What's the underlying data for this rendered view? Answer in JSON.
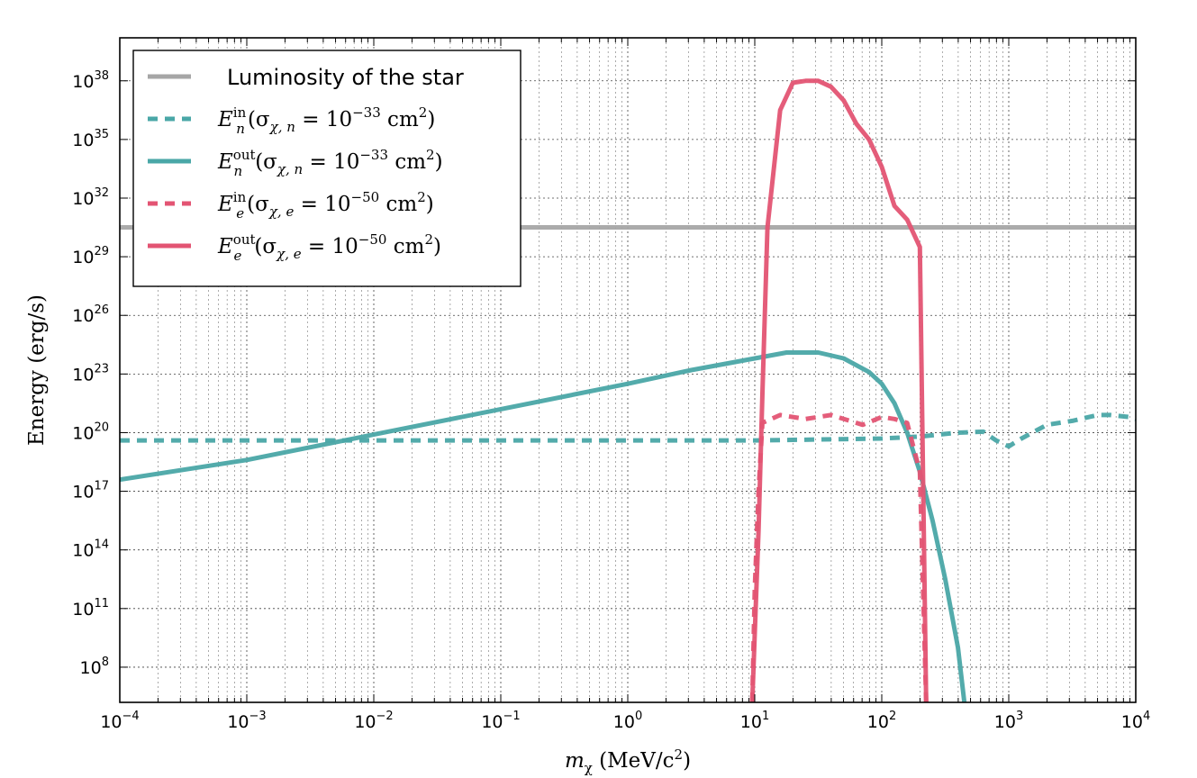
{
  "chart_data": {
    "type": "line",
    "xscale": "log",
    "yscale": "log",
    "xlabel": {
      "main": "m",
      "sub": "χ",
      "rest": " (MeV/c",
      "sup": "2",
      "close": ")"
    },
    "ylabel": "Energy (erg/s)",
    "xlim_log10": [
      -4,
      4
    ],
    "ylim_log10": [
      6.2,
      40.2
    ],
    "x_ticks": [
      {
        "log10": -4,
        "base": "10",
        "exp": "−4"
      },
      {
        "log10": -3,
        "base": "10",
        "exp": "−3"
      },
      {
        "log10": -2,
        "base": "10",
        "exp": "−2"
      },
      {
        "log10": -1,
        "base": "10",
        "exp": "−1"
      },
      {
        "log10": 0,
        "base": "10",
        "exp": "0"
      },
      {
        "log10": 1,
        "base": "10",
        "exp": "1"
      },
      {
        "log10": 2,
        "base": "10",
        "exp": "2"
      },
      {
        "log10": 3,
        "base": "10",
        "exp": "3"
      },
      {
        "log10": 4,
        "base": "10",
        "exp": "4"
      }
    ],
    "y_ticks": [
      {
        "log10": 8,
        "base": "10",
        "exp": "8"
      },
      {
        "log10": 11,
        "base": "10",
        "exp": "11"
      },
      {
        "log10": 14,
        "base": "10",
        "exp": "14"
      },
      {
        "log10": 17,
        "base": "10",
        "exp": "17"
      },
      {
        "log10": 20,
        "base": "10",
        "exp": "20"
      },
      {
        "log10": 23,
        "base": "10",
        "exp": "23"
      },
      {
        "log10": 26,
        "base": "10",
        "exp": "26"
      },
      {
        "log10": 29,
        "base": "10",
        "exp": "29"
      },
      {
        "log10": 32,
        "base": "10",
        "exp": "32"
      },
      {
        "log10": 35,
        "base": "10",
        "exp": "35"
      },
      {
        "log10": 38,
        "base": "10",
        "exp": "38"
      }
    ],
    "grid": true,
    "legend_position": "top-left",
    "colors": {
      "gray": "#a6a6a6",
      "teal": "#4aa7a7",
      "red": "#e35473"
    },
    "series": [
      {
        "name": "Luminosity of the star",
        "legend": {
          "kind": "plain",
          "text": "Luminosity of the star"
        },
        "color": "#a6a6a6",
        "style": "solid",
        "points_log10": [
          [
            -4,
            30.5
          ],
          [
            4,
            30.5
          ]
        ]
      },
      {
        "name": "E_n^in (σ_χ,n = 10^-33 cm^2)",
        "legend": {
          "kind": "math",
          "E": "E",
          "sub": "n",
          "sup": "in",
          "sigma": "(σ",
          "sigsub": "χ, n",
          "eq": " = 10",
          "exp": "−33",
          "unit": " cm",
          "unitexp": "2",
          "close": ")"
        },
        "color": "#4aa7a7",
        "style": "dashed",
        "points_log10": [
          [
            -4,
            19.6
          ],
          [
            0,
            19.6
          ],
          [
            1,
            19.6
          ],
          [
            1.5,
            19.65
          ],
          [
            2,
            19.7
          ],
          [
            2.3,
            19.8
          ],
          [
            2.6,
            20.0
          ],
          [
            2.8,
            20.05
          ],
          [
            2.9,
            19.6
          ],
          [
            3.0,
            19.3
          ],
          [
            3.1,
            19.7
          ],
          [
            3.3,
            20.4
          ],
          [
            3.5,
            20.6
          ],
          [
            3.7,
            20.9
          ],
          [
            3.8,
            20.9
          ],
          [
            3.95,
            20.8
          ],
          [
            4,
            20.7
          ]
        ]
      },
      {
        "name": "E_n^out (σ_χ,n = 10^-33 cm^2)",
        "legend": {
          "kind": "math",
          "E": "E",
          "sub": "n",
          "sup": "out",
          "sigma": "(σ",
          "sigsub": "χ, n",
          "eq": " = 10",
          "exp": "−33",
          "unit": " cm",
          "unitexp": "2",
          "close": ")"
        },
        "color": "#4aa7a7",
        "style": "solid",
        "points_log10": [
          [
            -4,
            17.6
          ],
          [
            -3,
            18.6
          ],
          [
            -2,
            19.9
          ],
          [
            -1,
            21.2
          ],
          [
            0,
            22.5
          ],
          [
            0.5,
            23.2
          ],
          [
            1,
            23.8
          ],
          [
            1.25,
            24.1
          ],
          [
            1.5,
            24.1
          ],
          [
            1.7,
            23.8
          ],
          [
            1.9,
            23.1
          ],
          [
            2.0,
            22.5
          ],
          [
            2.1,
            21.5
          ],
          [
            2.2,
            20.0
          ],
          [
            2.3,
            18.0
          ],
          [
            2.4,
            15.5
          ],
          [
            2.5,
            12.5
          ],
          [
            2.6,
            9.0
          ],
          [
            2.65,
            6.2
          ]
        ]
      },
      {
        "name": "E_e^in (σ_χ,e = 10^-50 cm^2)",
        "legend": {
          "kind": "math",
          "E": "E",
          "sub": "e",
          "sup": "in",
          "sigma": "(σ",
          "sigsub": "χ, e",
          "eq": " = 10",
          "exp": "−50",
          "unit": " cm",
          "unitexp": "2",
          "close": ")"
        },
        "color": "#e35473",
        "style": "dashed",
        "points_log10": [
          [
            0.98,
            6.2
          ],
          [
            1.0,
            12.0
          ],
          [
            1.03,
            17.0
          ],
          [
            1.06,
            20.5
          ],
          [
            1.2,
            20.9
          ],
          [
            1.4,
            20.7
          ],
          [
            1.6,
            20.9
          ],
          [
            1.85,
            20.4
          ],
          [
            2.0,
            20.8
          ],
          [
            2.1,
            20.7
          ],
          [
            2.2,
            20.5
          ],
          [
            2.3,
            18.0
          ],
          [
            2.35,
            6.2
          ]
        ]
      },
      {
        "name": "E_e^out (σ_χ,e = 10^-50 cm^2)",
        "legend": {
          "kind": "math",
          "E": "E",
          "sub": "e",
          "sup": "out",
          "sigma": "(σ",
          "sigsub": "χ, e",
          "eq": " = 10",
          "exp": "−50",
          "unit": " cm",
          "unitexp": "2",
          "close": ")"
        },
        "color": "#e35473",
        "style": "solid",
        "points_log10": [
          [
            0.98,
            6.2
          ],
          [
            1.03,
            15.0
          ],
          [
            1.06,
            22.0
          ],
          [
            1.1,
            30.5
          ],
          [
            1.2,
            36.5
          ],
          [
            1.3,
            37.9
          ],
          [
            1.4,
            38.0
          ],
          [
            1.5,
            38.0
          ],
          [
            1.6,
            37.7
          ],
          [
            1.7,
            37.0
          ],
          [
            1.8,
            35.8
          ],
          [
            1.9,
            35.0
          ],
          [
            2.0,
            33.6
          ],
          [
            2.1,
            31.6
          ],
          [
            2.2,
            30.9
          ],
          [
            2.3,
            29.5
          ],
          [
            2.35,
            6.2
          ]
        ]
      }
    ]
  }
}
